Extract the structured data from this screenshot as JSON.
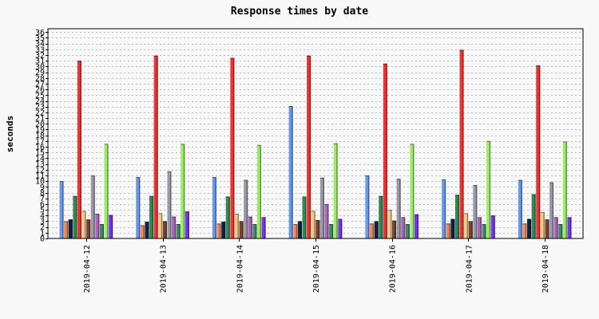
{
  "chart_data": {
    "type": "bar",
    "title": "Response times by date",
    "xlabel": "",
    "ylabel": "seconds",
    "ylim": [
      0,
      36.6
    ],
    "yticks": [
      0,
      1,
      2,
      3,
      4,
      5,
      6,
      7,
      8,
      9,
      10,
      11,
      12,
      13,
      14,
      15,
      16,
      17,
      18,
      19,
      20,
      21,
      22,
      23,
      24,
      25,
      26,
      27,
      28,
      29,
      30,
      31,
      32,
      33,
      34,
      35,
      36
    ],
    "grid": true,
    "legend": "none",
    "categories": [
      "2019-04-12",
      "2019-04-13",
      "2019-04-14",
      "2019-04-15",
      "2019-04-16",
      "2019-04-17",
      "2019-04-18"
    ],
    "series": [
      {
        "color": "#6699ee",
        "values": [
          10.0,
          10.7,
          10.7,
          23.1,
          11.0,
          10.3,
          10.2
        ]
      },
      {
        "color": "#ee8855",
        "values": [
          3.0,
          2.3,
          2.6,
          2.5,
          2.6,
          2.6,
          2.6
        ]
      },
      {
        "color": "#112244",
        "values": [
          3.3,
          2.9,
          2.9,
          3.0,
          3.0,
          3.4,
          3.4
        ]
      },
      {
        "color": "#338855",
        "values": [
          7.4,
          7.4,
          7.3,
          7.3,
          7.4,
          7.6,
          7.7
        ]
      },
      {
        "color": "#ee3333",
        "values": [
          31.0,
          31.9,
          31.5,
          31.9,
          30.5,
          32.9,
          30.2
        ]
      },
      {
        "color": "#eecc88",
        "values": [
          4.8,
          4.4,
          4.3,
          4.8,
          5.0,
          4.4,
          4.6
        ]
      },
      {
        "color": "#774433",
        "values": [
          3.3,
          3.0,
          3.0,
          3.2,
          3.1,
          3.0,
          3.3
        ]
      },
      {
        "color": "#9999aa",
        "values": [
          11.0,
          11.7,
          10.2,
          10.6,
          10.4,
          9.3,
          9.8
        ]
      },
      {
        "color": "#aa66bb",
        "values": [
          4.3,
          3.8,
          3.8,
          6.0,
          3.7,
          3.7,
          3.7
        ]
      },
      {
        "color": "#448866",
        "values": [
          2.5,
          2.5,
          2.5,
          2.5,
          2.5,
          2.5,
          2.5
        ]
      },
      {
        "color": "#99ee66",
        "values": [
          16.5,
          16.5,
          16.3,
          16.6,
          16.5,
          17.0,
          16.9
        ]
      },
      {
        "color": "#7733ee",
        "values": [
          4.1,
          4.7,
          3.7,
          3.4,
          4.2,
          4.0,
          3.7
        ]
      }
    ]
  }
}
